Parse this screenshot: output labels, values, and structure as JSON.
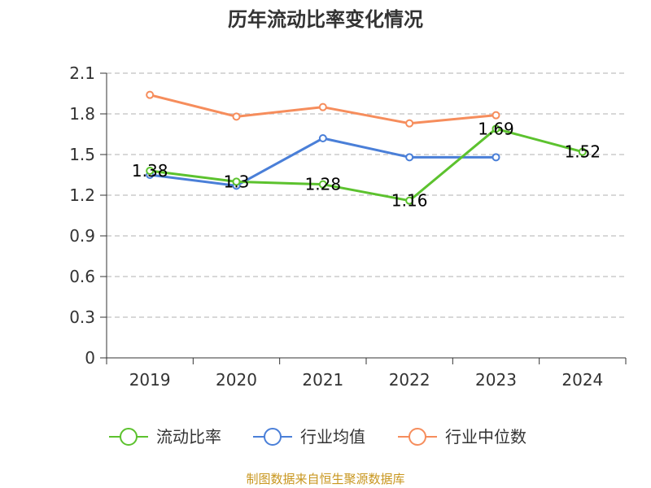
{
  "chart_data": {
    "type": "line",
    "title": "历年流动比率变化情况",
    "categories": [
      "2019",
      "2020",
      "2021",
      "2022",
      "2023",
      "2024"
    ],
    "ylim": [
      0,
      2.1
    ],
    "yticks": [
      0,
      0.3,
      0.6,
      0.9,
      1.2,
      1.5,
      1.8,
      2.1
    ],
    "ytick_labels": [
      "0",
      "0.3",
      "0.6",
      "0.9",
      "1.2",
      "1.5",
      "1.8",
      "2.1"
    ],
    "xlabel": "",
    "ylabel": "",
    "grid": true,
    "legend_position": "bottom",
    "series": [
      {
        "name": "流动比率",
        "color": "#5cc22e",
        "values": [
          1.38,
          1.3,
          1.28,
          1.16,
          1.69,
          1.52
        ],
        "labels": [
          "1.38",
          "1.3",
          "1.28",
          "1.16",
          "1.69",
          "1.52"
        ],
        "show_labels": true
      },
      {
        "name": "行业均值",
        "color": "#4a7fd8",
        "values": [
          1.35,
          1.27,
          1.62,
          1.48,
          1.48,
          null
        ],
        "show_labels": false
      },
      {
        "name": "行业中位数",
        "color": "#f68d5c",
        "values": [
          1.94,
          1.78,
          1.85,
          1.73,
          1.79,
          null
        ],
        "show_labels": false
      }
    ],
    "source": "制图数据来自恒生聚源数据库"
  }
}
